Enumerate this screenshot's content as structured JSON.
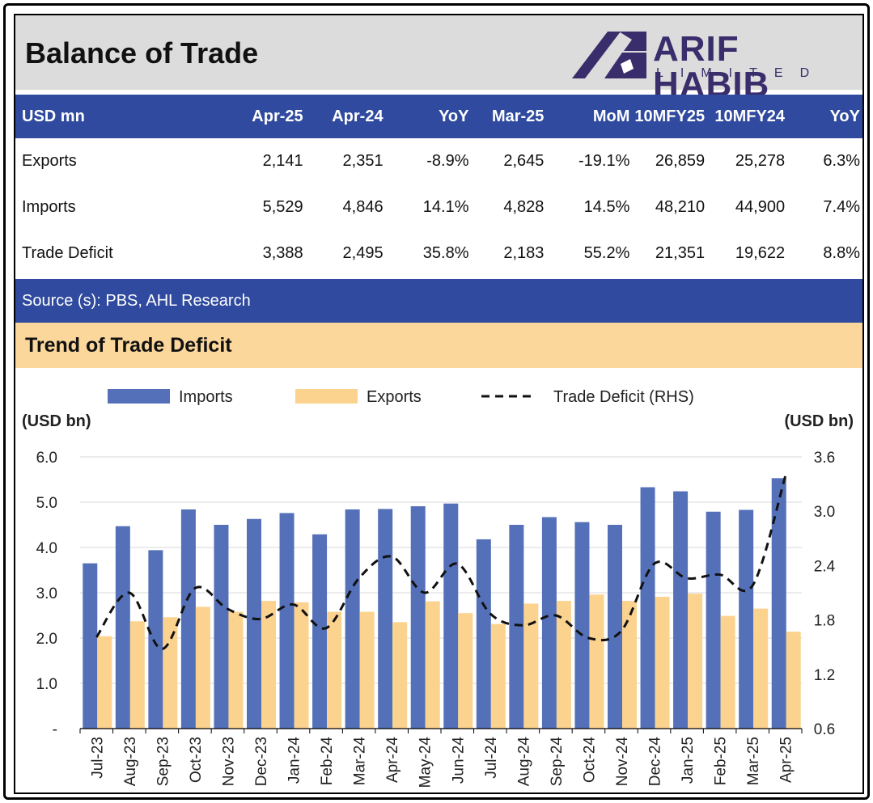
{
  "header": {
    "title": "Balance of Trade"
  },
  "logo": {
    "main": "ARIF HABIB",
    "sub": "LIMITED"
  },
  "table": {
    "headers": [
      "USD mn",
      "Apr-25",
      "Apr-24",
      "YoY",
      "Mar-25",
      "MoM",
      "10MFY25",
      "10MFY24",
      "YoY"
    ],
    "rows": [
      [
        "Exports",
        "2,141",
        "2,351",
        "-8.9%",
        "2,645",
        "-19.1%",
        "26,859",
        "25,278",
        "6.3%"
      ],
      [
        "Imports",
        "5,529",
        "4,846",
        "14.1%",
        "4,828",
        "14.5%",
        "48,210",
        "44,900",
        "7.4%"
      ],
      [
        "Trade Deficit",
        "3,388",
        "2,495",
        "35.8%",
        "2,183",
        "55.2%",
        "21,351",
        "19,622",
        "8.8%"
      ]
    ]
  },
  "source": "Source (s): PBS, AHL Research",
  "trend_title": "Trend of Trade Deficit",
  "colors": {
    "imports": "#5470b8",
    "exports": "#fbd38f",
    "deficit": "#111111",
    "header_bg": "#2f4a9e",
    "trend_bg": "#fbd79c",
    "logo": "#3a2d6b"
  },
  "chart_data": {
    "type": "bar",
    "categories": [
      "Jul-23",
      "Aug-23",
      "Sep-23",
      "Oct-23",
      "Nov-23",
      "Dec-23",
      "Jan-24",
      "Feb-24",
      "Mar-24",
      "Apr-24",
      "May-24",
      "Jun-24",
      "Jul-24",
      "Aug-24",
      "Sep-24",
      "Oct-24",
      "Nov-24",
      "Dec-24",
      "Jan-25",
      "Feb-25",
      "Mar-25",
      "Apr-25"
    ],
    "series": [
      {
        "name": "Imports",
        "type": "bar",
        "axis": "left",
        "values": [
          3.65,
          4.47,
          3.94,
          4.84,
          4.5,
          4.63,
          4.76,
          4.29,
          4.84,
          4.85,
          4.91,
          4.97,
          4.18,
          4.5,
          4.67,
          4.56,
          4.5,
          5.33,
          5.24,
          4.79,
          4.83,
          5.53
        ]
      },
      {
        "name": "Exports",
        "type": "bar",
        "axis": "left",
        "values": [
          2.04,
          2.37,
          2.46,
          2.69,
          2.58,
          2.82,
          2.79,
          2.58,
          2.58,
          2.35,
          2.81,
          2.55,
          2.31,
          2.76,
          2.82,
          2.96,
          2.82,
          2.91,
          2.98,
          2.49,
          2.65,
          2.14
        ]
      },
      {
        "name": "Trade Deficit (RHS)",
        "type": "line",
        "style": "dashed",
        "axis": "right",
        "values": [
          1.61,
          2.1,
          1.48,
          2.15,
          1.92,
          1.81,
          1.97,
          1.71,
          2.26,
          2.5,
          2.1,
          2.42,
          1.87,
          1.74,
          1.85,
          1.6,
          1.68,
          2.42,
          2.26,
          2.3,
          2.18,
          3.39
        ]
      }
    ],
    "ylabel": "(USD bn)",
    "y2label": "(USD bn)",
    "ylim": [
      0,
      6
    ],
    "y2lim": [
      0.6,
      3.6
    ],
    "yticks": [
      "-",
      "1.0",
      "2.0",
      "3.0",
      "4.0",
      "5.0",
      "6.0"
    ],
    "y2ticks": [
      "0.6",
      "1.2",
      "1.8",
      "2.4",
      "3.0",
      "3.6"
    ],
    "grid": true,
    "legend": "top"
  }
}
